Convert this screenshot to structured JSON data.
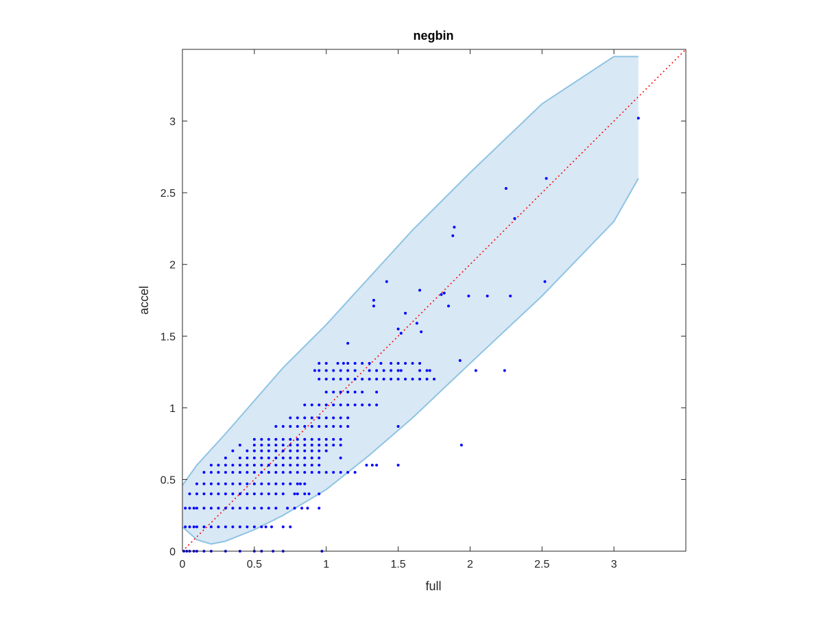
{
  "chart_data": {
    "type": "scatter",
    "title": "negbin",
    "xlabel": "full",
    "ylabel": "accel",
    "xlim": [
      0,
      3.5
    ],
    "ylim": [
      0,
      3.5
    ],
    "x_ticks": [
      "0",
      "0.5",
      "1",
      "1.5",
      "2",
      "2.5",
      "3"
    ],
    "y_ticks": [
      "0",
      "0.5",
      "1",
      "1.5",
      "2",
      "2.5",
      "3"
    ],
    "grid": false,
    "colors": {
      "points": "#0000ff",
      "diagonal": "#ff0000",
      "band_fill": "#d8e8f4",
      "band_edge": "#8ec3e3",
      "axes": "#262626"
    },
    "reference_line": {
      "style": "dotted",
      "from": [
        0,
        0
      ],
      "to": [
        3.5,
        3.5
      ]
    },
    "confidence_band": {
      "x": [
        0,
        0.1,
        0.2,
        0.3,
        0.5,
        0.7,
        1.0,
        1.3,
        1.6,
        2.0,
        2.5,
        3.0,
        3.17
      ],
      "upper": [
        0.46,
        0.6,
        0.71,
        0.82,
        1.05,
        1.28,
        1.58,
        1.91,
        2.24,
        2.64,
        3.12,
        3.45,
        3.45
      ],
      "lower": [
        0.17,
        0.08,
        0.05,
        0.07,
        0.15,
        0.25,
        0.43,
        0.67,
        0.93,
        1.31,
        1.78,
        2.3,
        2.6
      ]
    },
    "series": [
      {
        "x": [
          0.01,
          0.03,
          0.05,
          0.08,
          0.1,
          0.15,
          0.2,
          0.3,
          0.4,
          0.5,
          0.55,
          0.63,
          0.7,
          0.97,
          0.02,
          0.05,
          0.08,
          0.1,
          0.15,
          0.2,
          0.25,
          0.3,
          0.35,
          0.4,
          0.45,
          0.5,
          0.55,
          0.58,
          0.62,
          0.7,
          0.75,
          0.02,
          0.05,
          0.08,
          0.1,
          0.15,
          0.2,
          0.25,
          0.3,
          0.35,
          0.4,
          0.45,
          0.5,
          0.55,
          0.6,
          0.65,
          0.73,
          0.78,
          0.83,
          0.87,
          0.95,
          0.05,
          0.1,
          0.15,
          0.2,
          0.25,
          0.3,
          0.35,
          0.4,
          0.45,
          0.5,
          0.55,
          0.6,
          0.65,
          0.7,
          0.78,
          0.8,
          0.85,
          0.88,
          0.95,
          0.1,
          0.15,
          0.2,
          0.25,
          0.3,
          0.35,
          0.4,
          0.45,
          0.5,
          0.55,
          0.6,
          0.65,
          0.7,
          0.75,
          0.8,
          0.82,
          0.85,
          0.15,
          0.2,
          0.25,
          0.3,
          0.35,
          0.4,
          0.45,
          0.5,
          0.55,
          0.6,
          0.65,
          0.7,
          0.75,
          0.8,
          0.85,
          0.9,
          0.95,
          1.0,
          1.05,
          1.1,
          1.15,
          1.2,
          1.28,
          1.32,
          1.35,
          1.5,
          0.2,
          0.25,
          0.3,
          0.35,
          0.4,
          0.45,
          0.5,
          0.55,
          0.6,
          0.65,
          0.7,
          0.75,
          0.8,
          0.85,
          0.9,
          0.95,
          0.3,
          0.4,
          0.45,
          0.5,
          0.55,
          0.6,
          0.65,
          0.7,
          0.75,
          0.8,
          0.85,
          0.9,
          0.95,
          1.1,
          0.35,
          0.45,
          0.5,
          0.55,
          0.6,
          0.65,
          0.7,
          0.75,
          0.8,
          0.85,
          0.9,
          0.95,
          1.0,
          0.4,
          0.5,
          0.55,
          0.6,
          0.65,
          0.7,
          0.75,
          0.8,
          0.85,
          0.9,
          0.95,
          1.0,
          1.05,
          1.1,
          0.5,
          0.55,
          0.6,
          0.65,
          0.7,
          0.75,
          0.8,
          0.85,
          0.9,
          0.95,
          1.0,
          1.05,
          1.1,
          1.5,
          0.65,
          0.7,
          0.75,
          0.8,
          0.85,
          0.9,
          0.95,
          1.0,
          1.05,
          1.1,
          1.15,
          0.75,
          0.8,
          0.85,
          0.9,
          0.95,
          1.0,
          1.05,
          1.1,
          1.15,
          0.85,
          0.9,
          0.95,
          1.0,
          1.05,
          1.1,
          1.15,
          1.2,
          1.25,
          1.3,
          1.35,
          1.0,
          1.05,
          1.1,
          1.15,
          1.2,
          1.25,
          1.35,
          0.95,
          1.0,
          1.05,
          1.1,
          1.15,
          1.2,
          1.25,
          1.3,
          1.35,
          1.4,
          1.45,
          1.5,
          1.55,
          1.6,
          1.65,
          1.7,
          1.75,
          0.92,
          0.95,
          1.0,
          1.05,
          1.1,
          1.15,
          1.2,
          1.3,
          1.35,
          1.4,
          1.45,
          1.5,
          1.52,
          1.65,
          1.7,
          1.72,
          0.95,
          1.0,
          1.08,
          1.12,
          1.15,
          1.2,
          1.25,
          1.3,
          1.38,
          1.45,
          1.5,
          1.55,
          1.6,
          1.65,
          1.15,
          1.33,
          1.33,
          1.42,
          1.5,
          1.52,
          1.55,
          1.63,
          1.65,
          1.66,
          1.8,
          1.82,
          1.85,
          1.88,
          1.89,
          1.93,
          1.94,
          1.99,
          2.04,
          2.12,
          2.24,
          2.25,
          2.28,
          2.31,
          2.52,
          2.53,
          3.17
        ],
        "y": [
          0,
          0,
          0,
          0,
          0,
          0,
          0,
          0,
          0,
          0,
          0,
          0,
          0,
          0,
          0.17,
          0.17,
          0.17,
          0.17,
          0.17,
          0.17,
          0.17,
          0.17,
          0.17,
          0.17,
          0.17,
          0.17,
          0.17,
          0.17,
          0.17,
          0.17,
          0.17,
          0.3,
          0.3,
          0.3,
          0.3,
          0.3,
          0.3,
          0.3,
          0.3,
          0.3,
          0.3,
          0.3,
          0.3,
          0.3,
          0.3,
          0.3,
          0.3,
          0.3,
          0.3,
          0.3,
          0.3,
          0.4,
          0.4,
          0.4,
          0.4,
          0.4,
          0.4,
          0.4,
          0.4,
          0.4,
          0.4,
          0.4,
          0.4,
          0.4,
          0.4,
          0.4,
          0.4,
          0.4,
          0.4,
          0.4,
          0.47,
          0.47,
          0.47,
          0.47,
          0.47,
          0.47,
          0.47,
          0.47,
          0.47,
          0.47,
          0.47,
          0.47,
          0.47,
          0.47,
          0.47,
          0.47,
          0.47,
          0.55,
          0.55,
          0.55,
          0.55,
          0.55,
          0.55,
          0.55,
          0.55,
          0.55,
          0.55,
          0.55,
          0.55,
          0.55,
          0.55,
          0.55,
          0.55,
          0.55,
          0.55,
          0.55,
          0.55,
          0.55,
          0.55,
          0.6,
          0.6,
          0.6,
          0.6,
          0.6,
          0.6,
          0.6,
          0.6,
          0.6,
          0.6,
          0.6,
          0.6,
          0.6,
          0.6,
          0.6,
          0.6,
          0.6,
          0.6,
          0.6,
          0.6,
          0.65,
          0.65,
          0.65,
          0.65,
          0.65,
          0.65,
          0.65,
          0.65,
          0.65,
          0.65,
          0.65,
          0.65,
          0.65,
          0.65,
          0.7,
          0.7,
          0.7,
          0.7,
          0.7,
          0.7,
          0.7,
          0.7,
          0.7,
          0.7,
          0.7,
          0.7,
          0.7,
          0.74,
          0.74,
          0.74,
          0.74,
          0.74,
          0.74,
          0.74,
          0.74,
          0.74,
          0.74,
          0.74,
          0.74,
          0.74,
          0.74,
          0.78,
          0.78,
          0.78,
          0.78,
          0.78,
          0.78,
          0.78,
          0.78,
          0.78,
          0.78,
          0.78,
          0.78,
          0.78,
          0.87,
          0.87,
          0.87,
          0.87,
          0.87,
          0.87,
          0.87,
          0.87,
          0.87,
          0.87,
          0.87,
          0.87,
          0.93,
          0.93,
          0.93,
          0.93,
          0.93,
          0.93,
          0.93,
          0.93,
          0.93,
          1.02,
          1.02,
          1.02,
          1.02,
          1.02,
          1.02,
          1.02,
          1.02,
          1.02,
          1.02,
          1.02,
          1.11,
          1.11,
          1.11,
          1.11,
          1.11,
          1.11,
          1.11,
          1.2,
          1.2,
          1.2,
          1.2,
          1.2,
          1.2,
          1.2,
          1.2,
          1.2,
          1.2,
          1.2,
          1.2,
          1.2,
          1.2,
          1.2,
          1.2,
          1.2,
          1.26,
          1.26,
          1.26,
          1.26,
          1.26,
          1.26,
          1.26,
          1.26,
          1.26,
          1.26,
          1.26,
          1.26,
          1.26,
          1.26,
          1.26,
          1.26,
          1.31,
          1.31,
          1.31,
          1.31,
          1.31,
          1.31,
          1.31,
          1.31,
          1.31,
          1.31,
          1.31,
          1.31,
          1.31,
          1.31,
          1.45,
          1.75,
          1.71,
          1.88,
          1.55,
          1.52,
          1.66,
          1.59,
          1.82,
          1.53,
          1.79,
          1.8,
          1.71,
          2.2,
          2.26,
          1.33,
          0.74,
          1.78,
          1.26,
          1.78,
          1.26,
          2.53,
          1.78,
          2.32,
          1.88,
          2.6,
          3.02
        ]
      }
    ]
  }
}
